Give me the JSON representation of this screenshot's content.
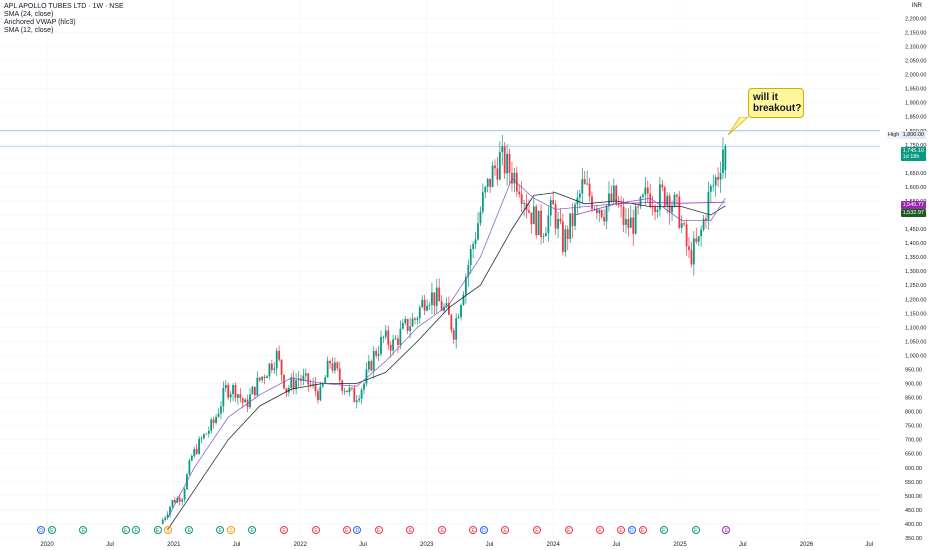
{
  "legend": {
    "title": "APL APOLLO TUBES LTD · 1W · NSE",
    "items": [
      "SMA (24, close)",
      "Anchored VWAP (hlc3)",
      "SMA (12, close)"
    ]
  },
  "currency": "INR",
  "annotation": {
    "text_line1": "will it",
    "text_line2": "breakout?"
  },
  "high_marker": {
    "label": "High",
    "value": "1,800.00"
  },
  "price_badges": {
    "last": "1,745.10",
    "countdown": "1d 18h",
    "vwap": "1,545.77",
    "sma": "1,532.97"
  },
  "colors": {
    "up": "#089981",
    "down": "#f23645",
    "sma24": "#131722",
    "vwap": "#9c27b0",
    "sma12": "#7e57c2",
    "hline": "#5b9bd5",
    "grid": "#f0f3fa"
  },
  "events": [
    {
      "x": "2019-12",
      "glyph": "D",
      "color": "#2962ff"
    },
    {
      "x": "2020-01",
      "glyph": "E",
      "color": "#089981"
    },
    {
      "x": "2020-04",
      "glyph": "E",
      "color": "#089981"
    },
    {
      "x": "2020-08",
      "glyph": "E",
      "color": "#089981"
    },
    {
      "x": "2020-09",
      "glyph": "E",
      "color": "#089981"
    },
    {
      "x": "2020-11",
      "glyph": "E",
      "color": "#089981"
    },
    {
      "x": "2020-12",
      "glyph": "S",
      "color": "#ff9800"
    },
    {
      "x": "2021-02",
      "glyph": "E",
      "color": "#089981"
    },
    {
      "x": "2021-05",
      "glyph": "E",
      "color": "#089981"
    },
    {
      "x": "2021-06",
      "glyph": "S",
      "color": "#ff9800"
    },
    {
      "x": "2021-08",
      "glyph": "E",
      "color": "#089981"
    },
    {
      "x": "2021-11",
      "glyph": "E",
      "color": "#f23645"
    },
    {
      "x": "2022-02",
      "glyph": "E",
      "color": "#f23645"
    },
    {
      "x": "2022-05",
      "glyph": "E",
      "color": "#f23645"
    },
    {
      "x": "2022-06",
      "glyph": "D",
      "color": "#2962ff"
    },
    {
      "x": "2022-08",
      "glyph": "E",
      "color": "#f23645"
    },
    {
      "x": "2022-11",
      "glyph": "E",
      "color": "#f23645"
    },
    {
      "x": "2023-02",
      "glyph": "E",
      "color": "#f23645"
    },
    {
      "x": "2023-05",
      "glyph": "E",
      "color": "#f23645"
    },
    {
      "x": "2023-06",
      "glyph": "D",
      "color": "#2962ff"
    },
    {
      "x": "2023-08",
      "glyph": "E",
      "color": "#f23645"
    },
    {
      "x": "2023-11",
      "glyph": "E",
      "color": "#f23645"
    },
    {
      "x": "2024-02",
      "glyph": "E",
      "color": "#f23645"
    },
    {
      "x": "2024-05",
      "glyph": "E",
      "color": "#f23645"
    },
    {
      "x": "2024-07",
      "glyph": "E",
      "color": "#f23645"
    },
    {
      "x": "2024-08",
      "glyph": "D",
      "color": "#2962ff"
    },
    {
      "x": "2024-09",
      "glyph": "E",
      "color": "#f23645"
    },
    {
      "x": "2024-11",
      "glyph": "E",
      "color": "#089981"
    },
    {
      "x": "2025-02",
      "glyph": "E",
      "color": "#089981"
    },
    {
      "x": "2025-05",
      "glyph": "E",
      "color": "#9c27b0"
    }
  ],
  "chart_data": {
    "type": "candlestick",
    "title": "APL APOLLO TUBES LTD · 1W · NSE",
    "xlabel": "",
    "ylabel": "",
    "unit": "INR",
    "x_axis_ticks": [
      "2020",
      "Jul",
      "2021",
      "Jul",
      "2022",
      "Jul",
      "2023",
      "Jul",
      "2024",
      "Jul",
      "2025",
      "Jul",
      "2026",
      "Jul"
    ],
    "y_axis_ticks": [
      "2,200.00",
      "2,150.00",
      "2,100.00",
      "2,050.00",
      "2,000.00",
      "1,950.00",
      "1,900.00",
      "1,850.00",
      "1,800.00",
      "1,750.00",
      "1,700.00",
      "1,650.00",
      "1,600.00",
      "1,550.00",
      "1,500.00",
      "1,450.00",
      "1,400.00",
      "1,350.00",
      "1,300.00",
      "1,250.00",
      "1,200.00",
      "1,150.00",
      "1,100.00",
      "1,050.00",
      "1,000.00",
      "950.00",
      "900.00",
      "850.00",
      "800.00",
      "750.00",
      "700.00",
      "650.00",
      "600.00",
      "550.00",
      "500.00",
      "450.00",
      "400.00",
      "350.00"
    ],
    "ylim": [
      350,
      2230
    ],
    "grid": true,
    "close_path": [
      [
        "2020-11-30",
        400
      ],
      [
        "2020-12-14",
        430
      ],
      [
        "2021-01-04",
        480
      ],
      [
        "2021-02-01",
        500
      ],
      [
        "2021-03-01",
        640
      ],
      [
        "2021-03-29",
        700
      ],
      [
        "2021-05-03",
        760
      ],
      [
        "2021-06-07",
        880
      ],
      [
        "2021-07-05",
        880
      ],
      [
        "2021-08-02",
        820
      ],
      [
        "2021-09-06",
        900
      ],
      [
        "2021-10-04",
        950
      ],
      [
        "2021-11-01",
        1000
      ],
      [
        "2021-11-29",
        880
      ],
      [
        "2022-01-03",
        920
      ],
      [
        "2022-01-31",
        900
      ],
      [
        "2022-03-07",
        860
      ],
      [
        "2022-04-04",
        980
      ],
      [
        "2022-05-09",
        900
      ],
      [
        "2022-06-13",
        850
      ],
      [
        "2022-07-11",
        900
      ],
      [
        "2022-08-08",
        1000
      ],
      [
        "2022-09-05",
        1060
      ],
      [
        "2022-10-03",
        1040
      ],
      [
        "2022-11-07",
        1100
      ],
      [
        "2022-12-05",
        1130
      ],
      [
        "2023-01-09",
        1220
      ],
      [
        "2023-02-06",
        1200
      ],
      [
        "2023-03-06",
        1150
      ],
      [
        "2023-03-27",
        1090
      ],
      [
        "2023-04-24",
        1250
      ],
      [
        "2023-05-22",
        1400
      ],
      [
        "2023-06-19",
        1550
      ],
      [
        "2023-07-17",
        1650
      ],
      [
        "2023-08-07",
        1700
      ],
      [
        "2023-09-04",
        1660
      ],
      [
        "2023-10-02",
        1620
      ],
      [
        "2023-10-30",
        1520
      ],
      [
        "2023-12-04",
        1450
      ],
      [
        "2024-01-08",
        1520
      ],
      [
        "2024-02-05",
        1400
      ],
      [
        "2024-03-04",
        1480
      ],
      [
        "2024-04-01",
        1600
      ],
      [
        "2024-05-06",
        1550
      ],
      [
        "2024-06-03",
        1520
      ],
      [
        "2024-07-01",
        1560
      ],
      [
        "2024-08-05",
        1460
      ],
      [
        "2024-09-02",
        1480
      ],
      [
        "2024-10-07",
        1580
      ],
      [
        "2024-11-04",
        1560
      ],
      [
        "2024-12-02",
        1580
      ],
      [
        "2025-01-06",
        1500
      ],
      [
        "2025-02-03",
        1350
      ],
      [
        "2025-03-03",
        1400
      ],
      [
        "2025-03-31",
        1560
      ],
      [
        "2025-04-28",
        1650
      ],
      [
        "2025-05-12",
        1745.1
      ]
    ],
    "series": [
      {
        "name": "SMA (24, close)",
        "path": [
          [
            "2020-12-14",
            380
          ],
          [
            "2021-03-01",
            520
          ],
          [
            "2021-06-07",
            700
          ],
          [
            "2021-09-06",
            820
          ],
          [
            "2021-12-06",
            880
          ],
          [
            "2022-03-07",
            900
          ],
          [
            "2022-06-13",
            900
          ],
          [
            "2022-09-05",
            940
          ],
          [
            "2022-12-05",
            1050
          ],
          [
            "2023-03-06",
            1170
          ],
          [
            "2023-06-05",
            1250
          ],
          [
            "2023-09-04",
            1450
          ],
          [
            "2023-11-06",
            1570
          ],
          [
            "2024-01-08",
            1580
          ],
          [
            "2024-04-01",
            1540
          ],
          [
            "2024-07-01",
            1550
          ],
          [
            "2024-10-07",
            1530
          ],
          [
            "2025-01-06",
            1530
          ],
          [
            "2025-03-31",
            1500
          ],
          [
            "2025-05-12",
            1532.97
          ]
        ]
      },
      {
        "name": "Anchored VWAP (hlc3)",
        "path": [
          [
            "2024-03-04",
            1500
          ],
          [
            "2024-07-01",
            1540
          ],
          [
            "2024-10-07",
            1545
          ],
          [
            "2025-01-06",
            1542
          ],
          [
            "2025-05-12",
            1545.77
          ]
        ]
      },
      {
        "name": "SMA (12, close)",
        "path": [
          [
            "2020-12-14",
            420
          ],
          [
            "2021-03-01",
            600
          ],
          [
            "2021-06-07",
            780
          ],
          [
            "2021-09-06",
            860
          ],
          [
            "2021-12-06",
            920
          ],
          [
            "2022-03-07",
            900
          ],
          [
            "2022-06-13",
            890
          ],
          [
            "2022-09-05",
            980
          ],
          [
            "2022-12-05",
            1100
          ],
          [
            "2023-03-06",
            1180
          ],
          [
            "2023-06-05",
            1350
          ],
          [
            "2023-09-04",
            1630
          ],
          [
            "2023-11-06",
            1560
          ],
          [
            "2024-01-08",
            1520
          ],
          [
            "2024-04-01",
            1530
          ],
          [
            "2024-07-01",
            1540
          ],
          [
            "2024-10-07",
            1560
          ],
          [
            "2025-01-06",
            1480
          ],
          [
            "2025-03-31",
            1480
          ],
          [
            "2025-05-12",
            1560
          ]
        ]
      }
    ],
    "horizontal_lines": [
      {
        "label": "High",
        "value": 1800
      },
      {
        "label": "",
        "value": 1745.1
      }
    ],
    "legend": "top-left"
  }
}
